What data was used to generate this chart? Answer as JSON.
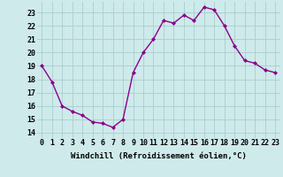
{
  "x": [
    0,
    1,
    2,
    3,
    4,
    5,
    6,
    7,
    8,
    9,
    10,
    11,
    12,
    13,
    14,
    15,
    16,
    17,
    18,
    19,
    20,
    21,
    22,
    23
  ],
  "y": [
    19.0,
    17.8,
    16.0,
    15.6,
    15.3,
    14.8,
    14.7,
    14.4,
    15.0,
    18.5,
    20.0,
    21.0,
    22.4,
    22.2,
    22.8,
    22.4,
    23.4,
    23.2,
    22.0,
    20.5,
    19.4,
    19.2,
    18.7,
    18.5
  ],
  "line_color": "#8B008B",
  "marker": "D",
  "marker_size": 2.0,
  "bg_color": "#ceeaea",
  "grid_color": "#aacece",
  "xlabel": "Windchill (Refroidissement éolien,°C)",
  "xlabel_fontsize": 6.5,
  "ylabel_ticks": [
    14,
    15,
    16,
    17,
    18,
    19,
    20,
    21,
    22,
    23
  ],
  "xtick_labels": [
    "0",
    "1",
    "2",
    "3",
    "4",
    "5",
    "6",
    "7",
    "8",
    "9",
    "10",
    "11",
    "12",
    "13",
    "14",
    "15",
    "16",
    "17",
    "18",
    "19",
    "20",
    "21",
    "22",
    "23"
  ],
  "ylim": [
    13.6,
    23.8
  ],
  "xlim": [
    -0.5,
    23.5
  ],
  "tick_fontsize": 6.0,
  "line_width": 1.0
}
